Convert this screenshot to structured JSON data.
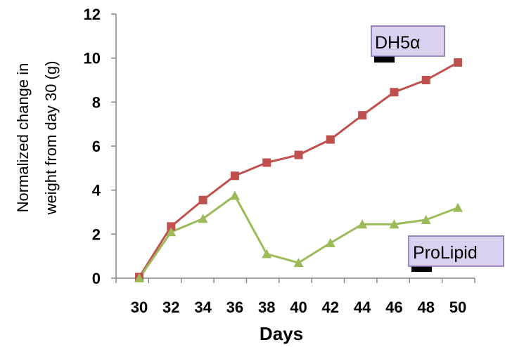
{
  "chart_data": {
    "type": "line",
    "xlabel": "Days",
    "ylabel": [
      "Normalized change in",
      "weight from day 30 (g)"
    ],
    "x": [
      30,
      32,
      34,
      36,
      38,
      40,
      42,
      44,
      46,
      48,
      50
    ],
    "xticks": [
      "30",
      "32",
      "34",
      "36",
      "38",
      "40",
      "42",
      "44",
      "46",
      "48",
      "50"
    ],
    "yticks": [
      "0",
      "2",
      "4",
      "6",
      "8",
      "10",
      "12"
    ],
    "xlim": [
      30,
      50
    ],
    "ylim": [
      0,
      12
    ],
    "grid": false,
    "series": [
      {
        "name": "DH5α",
        "color": "#c0504d",
        "marker": "square",
        "values": [
          0.05,
          2.35,
          3.55,
          4.65,
          5.25,
          5.6,
          6.3,
          7.4,
          8.45,
          9.0,
          9.8
        ]
      },
      {
        "name": "ProLipid",
        "color": "#9bbb59",
        "marker": "triangle",
        "values": [
          0.0,
          2.1,
          2.7,
          3.75,
          1.1,
          0.7,
          1.6,
          2.45,
          2.45,
          2.65,
          3.2
        ]
      }
    ],
    "annotations": [
      {
        "text": "DH5α",
        "series": 0
      },
      {
        "text": "ProLipid",
        "series": 1
      }
    ]
  }
}
